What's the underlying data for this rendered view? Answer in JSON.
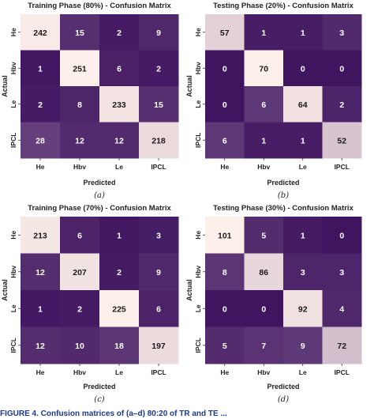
{
  "chart_data": [
    {
      "type": "heatmap",
      "title": "Training Phase (80%) - Confusion Matrix",
      "xlabel": "Predicted",
      "ylabel": "Actual",
      "x_categories": [
        "He",
        "Hbv",
        "Le",
        "IPCL"
      ],
      "y_categories": [
        "He",
        "Hbv",
        "Le",
        "IPCL"
      ],
      "values": [
        [
          242,
          15,
          2,
          9
        ],
        [
          1,
          251,
          6,
          2
        ],
        [
          2,
          8,
          233,
          15
        ],
        [
          28,
          12,
          12,
          218
        ]
      ],
      "caption": "(a)"
    },
    {
      "type": "heatmap",
      "title": "Testing Phase (20%) - Confusion Matrix",
      "xlabel": "Predicted",
      "ylabel": "Actual",
      "x_categories": [
        "He",
        "Hbv",
        "Le",
        "IPCL"
      ],
      "y_categories": [
        "He",
        "Hbv",
        "Le",
        "IPCL"
      ],
      "values": [
        [
          57,
          1,
          1,
          3
        ],
        [
          0,
          70,
          0,
          0
        ],
        [
          0,
          6,
          64,
          2
        ],
        [
          6,
          1,
          1,
          52
        ]
      ],
      "caption": "(b)"
    },
    {
      "type": "heatmap",
      "title": "Training Phase (70%) - Confusion Matrix",
      "xlabel": "Predicted",
      "ylabel": "Actual",
      "x_categories": [
        "He",
        "Hbv",
        "Le",
        "IPCL"
      ],
      "y_categories": [
        "He",
        "Hbv",
        "Le",
        "IPCL"
      ],
      "values": [
        [
          213,
          6,
          1,
          3
        ],
        [
          12,
          207,
          2,
          9
        ],
        [
          1,
          2,
          225,
          6
        ],
        [
          12,
          10,
          18,
          197
        ]
      ],
      "caption": "(c)"
    },
    {
      "type": "heatmap",
      "title": "Testing Phase (30%) - Confusion Matrix",
      "xlabel": "Predicted",
      "ylabel": "Actual",
      "x_categories": [
        "He",
        "Hbv",
        "Le",
        "IPCL"
      ],
      "y_categories": [
        "He",
        "Hbv",
        "Le",
        "IPCL"
      ],
      "values": [
        [
          101,
          5,
          1,
          0
        ],
        [
          8,
          86,
          3,
          3
        ],
        [
          0,
          0,
          92,
          4
        ],
        [
          5,
          7,
          9,
          72
        ]
      ],
      "caption": "(d)"
    }
  ],
  "colors": {
    "low": "#3f1560",
    "high": "#fdf0ea",
    "text_dark": "#1a1a1a",
    "text_light": "#ffffff",
    "caption_text": "#1b3a8c"
  },
  "figure_caption": "FIGURE 4. Confusion matrices of (a–d) 80:20 of TR and TE ..."
}
